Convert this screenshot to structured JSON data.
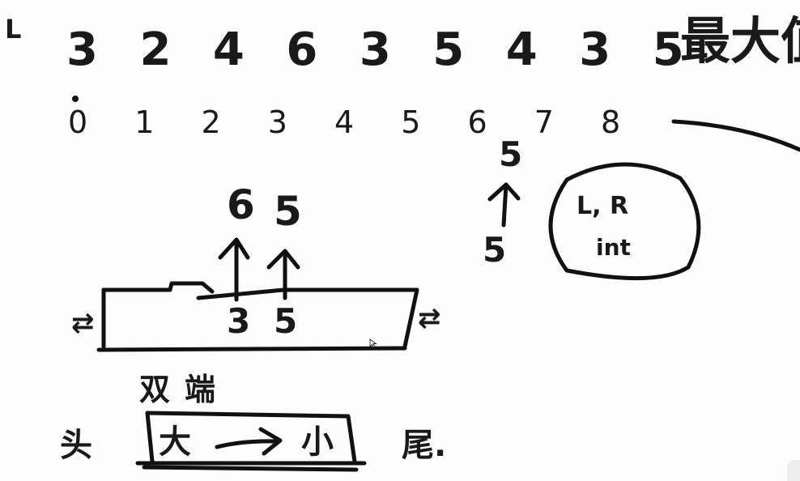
{
  "board": {
    "corner_mark": "L",
    "array_values": "3 2 4 6 3 5 4 3 5",
    "array_indices": "0 1 2 3 4 5 6 7 8",
    "title_partial": "最大值",
    "right_stack_top": "5",
    "right_stack_bottom": "5",
    "node_line1": "L, R",
    "node_line2": "int",
    "top_values": {
      "left": "6",
      "right": "5"
    },
    "box_values": {
      "left": "3",
      "right": "5"
    },
    "box_left_label": "⇄",
    "box_right_label": "⇄",
    "deque_label": "双端",
    "head_label": "头",
    "tail_label": "尾.",
    "deque_big": "大",
    "deque_small": "小"
  }
}
